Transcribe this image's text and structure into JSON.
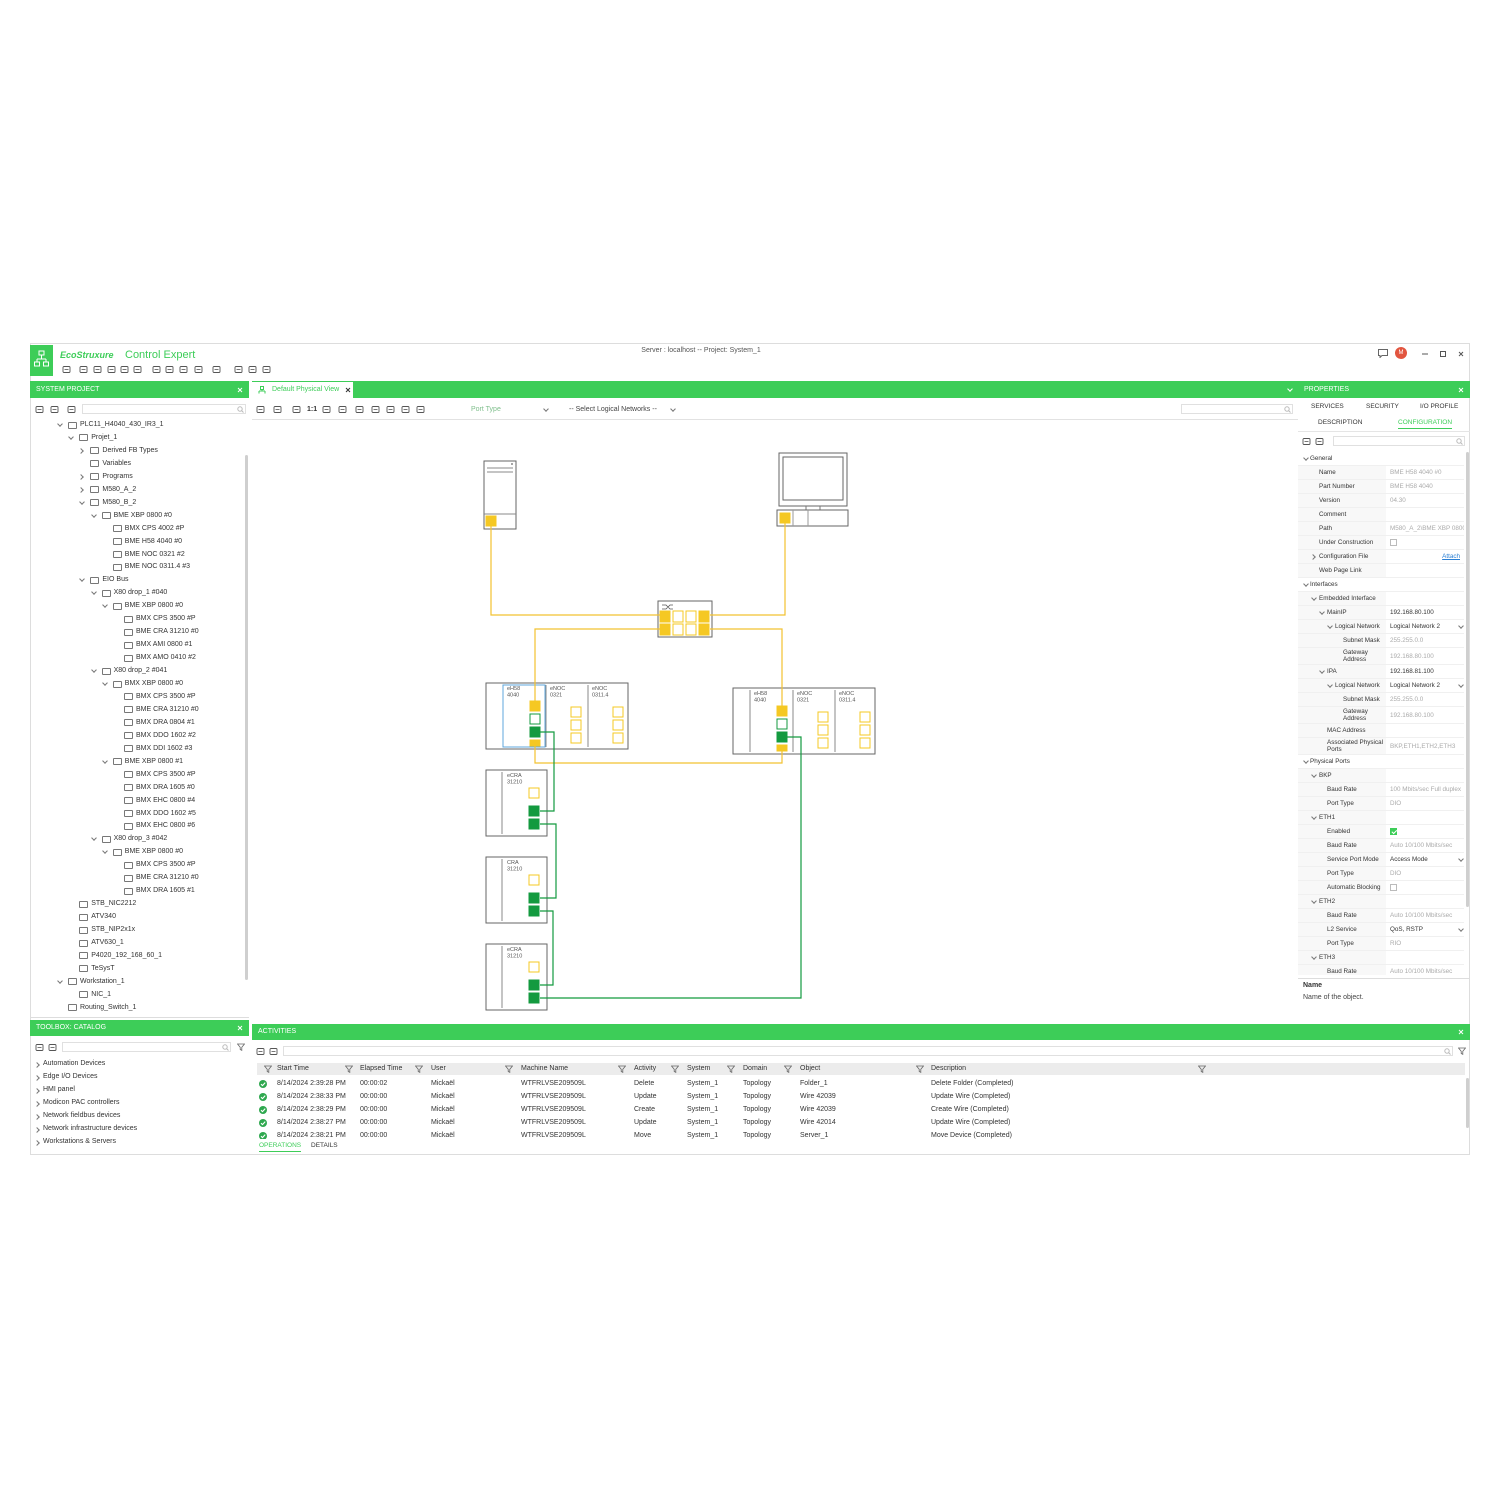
{
  "header": {
    "brand": "EcoStruxure",
    "product": "Control Expert",
    "server": "Server : localhost -- Project: System_1",
    "avatar": "M"
  },
  "system_project": {
    "title": "SYSTEM PROJECT",
    "tree": [
      {
        "label": "PLC11_H4040_430_IR3_1",
        "children": [
          {
            "label": "Projet_1",
            "children": [
              {
                "label": "Derived FB Types",
                "collapsed": true
              },
              {
                "label": "Variables"
              },
              {
                "label": "Programs",
                "collapsed": true
              },
              {
                "label": "M580_A_2",
                "collapsed": true
              },
              {
                "label": "M580_B_2",
                "children": [
                  {
                    "label": "BME XBP 0800 #0",
                    "children": [
                      {
                        "label": "BMX CPS 4002 #P"
                      },
                      {
                        "label": "BME H58 4040 #0"
                      },
                      {
                        "label": "BME NOC 0321 #2"
                      },
                      {
                        "label": "BME NOC 0311.4 #3"
                      }
                    ]
                  }
                ]
              },
              {
                "label": "EIO Bus",
                "children": [
                  {
                    "label": "X80 drop_1 #040",
                    "children": [
                      {
                        "label": "BME XBP 0800 #0",
                        "children": [
                          {
                            "label": "BMX CPS 3500 #P"
                          },
                          {
                            "label": "BME CRA 31210 #0"
                          },
                          {
                            "label": "BMX AMI 0800 #1"
                          },
                          {
                            "label": "BMX AMO 0410 #2"
                          }
                        ]
                      }
                    ]
                  },
                  {
                    "label": "X80 drop_2 #041",
                    "children": [
                      {
                        "label": "BMX XBP 0800 #0",
                        "children": [
                          {
                            "label": "BMX CPS 3500 #P"
                          },
                          {
                            "label": "BME CRA 31210 #0"
                          },
                          {
                            "label": "BMX DRA 0804 #1"
                          },
                          {
                            "label": "BMX DDO 1602 #2"
                          },
                          {
                            "label": "BMX DDI 1602 #3"
                          }
                        ]
                      },
                      {
                        "label": "BME XBP 0800 #1",
                        "children": [
                          {
                            "label": "BMX CPS 3500 #P"
                          },
                          {
                            "label": "BMX DRA 1605 #0"
                          },
                          {
                            "label": "BMX EHC 0800 #4"
                          },
                          {
                            "label": "BMX DDO 1602 #5"
                          },
                          {
                            "label": "BMX EHC 0800 #6"
                          }
                        ]
                      }
                    ]
                  },
                  {
                    "label": "X80 drop_3 #042",
                    "children": [
                      {
                        "label": "BME XBP 0800 #0",
                        "children": [
                          {
                            "label": "BMX CPS 3500 #P"
                          },
                          {
                            "label": "BME CRA 31210 #0"
                          },
                          {
                            "label": "BMX DRA 1605 #1"
                          }
                        ]
                      }
                    ]
                  }
                ]
              }
            ]
          },
          {
            "label": "STB_NIC2212"
          },
          {
            "label": "ATV340"
          },
          {
            "label": "STB_NIP2x1x"
          },
          {
            "label": "ATV630_1"
          },
          {
            "label": "P4020_192_168_60_1"
          },
          {
            "label": "TeSysT"
          }
        ]
      },
      {
        "label": "Workstation_1",
        "children": [
          {
            "label": "NIC_1"
          }
        ]
      },
      {
        "label": "Routing_Switch_1"
      }
    ]
  },
  "toolbox": {
    "title": "TOOLBOX: CATALOG",
    "items": [
      "Automation Devices",
      "Edge I/O Devices",
      "HMI panel",
      "Modicon PAC controllers",
      "Network fieldbus devices",
      "Network infrastructure devices",
      "Workstations & Servers"
    ]
  },
  "diagram": {
    "tab": "Default Physical View",
    "zoom": "1:1",
    "port_type": "Port Type",
    "logical_networks": "-- Select Logical Networks --",
    "racks": [
      [
        [
          "eH58",
          "4040"
        ],
        [
          "eNOC",
          "0321"
        ],
        [
          "eNOC",
          "0311.4"
        ]
      ],
      [
        [
          "eH58",
          "4040"
        ],
        [
          "eNOC",
          "0321"
        ],
        [
          "eNOC",
          "0311.4"
        ]
      ]
    ],
    "adapters": [
      [
        "eCRA",
        "31210"
      ],
      [
        "CRA",
        "31210"
      ],
      [
        "eCRA",
        "31210"
      ]
    ]
  },
  "properties": {
    "title": "PROPERTIES",
    "tabs": [
      "SERVICES",
      "SECURITY",
      "I/O PROFILE",
      "DESCRIPTION",
      "CONFIGURATION"
    ],
    "active_tab": 4,
    "sections": [
      {
        "title": "General",
        "rows": [
          {
            "label": "Name",
            "value": "BME H58 4040 #0",
            "readonly": true
          },
          {
            "label": "Part Number",
            "value": "BME H58 4040",
            "readonly": true
          },
          {
            "label": "Version",
            "value": "04.30",
            "readonly": true
          },
          {
            "label": "Comment"
          },
          {
            "label": "Path",
            "value": "M580_A_2\\BME XBP 0800",
            "readonly": true
          },
          {
            "label": "Under Construction",
            "value": false
          },
          {
            "label": "Configuration File",
            "value": "Attach",
            "link": true,
            "collapsed": true
          },
          {
            "label": "Web Page Link"
          }
        ]
      },
      {
        "title": "Interfaces",
        "rows": [
          {
            "label": "Embedded Interface",
            "children": [
              {
                "label": "MainIP",
                "value": "192.168.80.100",
                "children": [
                  {
                    "label": "Logical Network",
                    "value": "Logical Network 2",
                    "dropdown": true,
                    "children": [
                      {
                        "label": "Subnet Mask",
                        "value": "255.255.0.0",
                        "readonly": true
                      },
                      {
                        "label": "Gateway Address",
                        "value": "192.168.80.100",
                        "readonly": true
                      }
                    ]
                  }
                ]
              },
              {
                "label": "IPA",
                "value": "192.168.81.100",
                "children": [
                  {
                    "label": "Logical Network",
                    "value": "Logical Network 2",
                    "dropdown": true,
                    "children": [
                      {
                        "label": "Subnet Mask",
                        "value": "255.255.0.0",
                        "readonly": true
                      },
                      {
                        "label": "Gateway Address",
                        "value": "192.168.80.100",
                        "readonly": true
                      }
                    ]
                  }
                ]
              },
              {
                "label": "MAC Address"
              },
              {
                "label": "Associated Physical Ports",
                "value": "BKP,ETH1,ETH2,ETH3",
                "readonly": true
              }
            ]
          }
        ]
      },
      {
        "title": "Physical Ports",
        "rows": [
          {
            "label": "BKP",
            "children": [
              {
                "label": "Baud Rate",
                "value": "100 Mbits/sec Full duplex",
                "readonly": true
              },
              {
                "label": "Port Type",
                "value": "DIO",
                "readonly": true
              }
            ]
          },
          {
            "label": "ETH1",
            "children": [
              {
                "label": "Enabled",
                "value": true
              },
              {
                "label": "Baud Rate",
                "value": "Auto 10/100 Mbits/sec",
                "readonly": true
              },
              {
                "label": "Service Port Mode",
                "value": "Access Mode",
                "dropdown": true
              },
              {
                "label": "Port Type",
                "value": "DIO",
                "readonly": true
              },
              {
                "label": "Automatic Blocking",
                "value": false
              }
            ]
          },
          {
            "label": "ETH2",
            "children": [
              {
                "label": "Baud Rate",
                "value": "Auto 10/100 Mbits/sec",
                "readonly": true
              },
              {
                "label": "L2 Service",
                "value": "QoS, RSTP",
                "dropdown": true
              },
              {
                "label": "Port Type",
                "value": "RIO",
                "readonly": true
              }
            ]
          },
          {
            "label": "ETH3",
            "children": [
              {
                "label": "Baud Rate",
                "value": "Auto 10/100 Mbits/sec",
                "readonly": true
              },
              {
                "label": "L2 Service",
                "value": "QoS, RSTP",
                "dropdown": true
              }
            ]
          }
        ]
      }
    ],
    "help": {
      "title": "Name",
      "text": "Name of the object."
    }
  },
  "activities": {
    "title": "ACTIVITIES",
    "columns": [
      "Start Time",
      "Elapsed Time",
      "User",
      "Machine Name",
      "Activity",
      "System",
      "Domain",
      "Object",
      "Description"
    ],
    "rows": [
      [
        "8/14/2024 2:39:28 PM",
        "00:00:02",
        "Mickaël",
        "WTFRLVSE209509L",
        "Delete",
        "System_1",
        "Topology",
        "Folder_1",
        "Delete Folder (Completed)"
      ],
      [
        "8/14/2024 2:38:33 PM",
        "00:00:00",
        "Mickaël",
        "WTFRLVSE209509L",
        "Update",
        "System_1",
        "Topology",
        "Wire 42039",
        "Update Wire (Completed)"
      ],
      [
        "8/14/2024 2:38:29 PM",
        "00:00:00",
        "Mickaël",
        "WTFRLVSE209509L",
        "Create",
        "System_1",
        "Topology",
        "Wire 42039",
        "Create Wire (Completed)"
      ],
      [
        "8/14/2024 2:38:27 PM",
        "00:00:00",
        "Mickaël",
        "WTFRLVSE209509L",
        "Update",
        "System_1",
        "Topology",
        "Wire 42014",
        "Update Wire (Completed)"
      ],
      [
        "8/14/2024 2:38:21 PM",
        "00:00:00",
        "Mickaël",
        "WTFRLVSE209509L",
        "Move",
        "System_1",
        "Topology",
        "Server_1",
        "Move Device (Completed)"
      ]
    ],
    "tabs": [
      "OPERATIONS",
      "DETAILS"
    ],
    "active_tab": 0
  }
}
